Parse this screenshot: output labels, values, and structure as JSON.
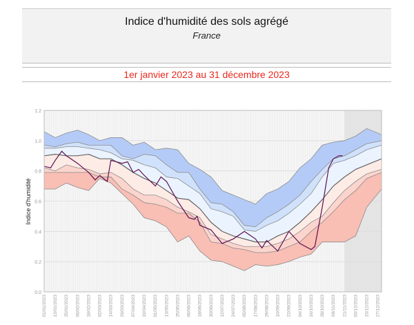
{
  "header": {
    "title": "Indice d'humidité des sols agrégé",
    "subtitle": "France"
  },
  "period": "1er janvier 2023 au 31 décembre 2023",
  "chart_data": {
    "type": "area",
    "ylabel": "Indice d'humidité",
    "ylim": [
      0,
      1.2
    ],
    "yticks": [
      "0.0",
      "0.2",
      "0.4",
      "0.6",
      "0.8",
      "1.0",
      "1.2"
    ],
    "xlim": [
      "2023-01-01",
      "2023-12-31"
    ],
    "xticks": [
      "01/01/2023",
      "13/01/2023",
      "25/01/2023",
      "06/02/2023",
      "18/02/2023",
      "02/03/2023",
      "14/03/2023",
      "26/03/2023",
      "07/04/2023",
      "19/04/2023",
      "01/05/2023",
      "13/05/2023",
      "25/05/2023",
      "06/06/2023",
      "18/06/2023",
      "30/06/2023",
      "12/07/2023",
      "24/07/2023",
      "05/08/2023",
      "17/08/2023",
      "29/08/2023",
      "10/09/2023",
      "22/09/2023",
      "04/10/2023",
      "16/10/2023",
      "28/10/2023",
      "09/11/2023",
      "21/11/2023",
      "03/12/2023",
      "15/12/2023",
      "27/12/2023"
    ],
    "grid": true,
    "shaded_period": [
      "2023-11-21",
      "2023-12-31"
    ],
    "band_x": [
      "2023-01-01",
      "2023-01-13",
      "2023-01-25",
      "2023-02-06",
      "2023-02-18",
      "2023-03-02",
      "2023-03-14",
      "2023-03-26",
      "2023-04-07",
      "2023-04-19",
      "2023-05-01",
      "2023-05-13",
      "2023-05-25",
      "2023-06-06",
      "2023-06-18",
      "2023-06-30",
      "2023-07-12",
      "2023-07-24",
      "2023-08-05",
      "2023-08-17",
      "2023-08-29",
      "2023-09-10",
      "2023-09-22",
      "2023-10-04",
      "2023-10-16",
      "2023-10-28",
      "2023-11-09",
      "2023-11-21",
      "2023-12-03",
      "2023-12-15",
      "2023-12-31"
    ],
    "bands": [
      {
        "values": [
          1.06,
          1.02,
          1.05,
          1.07,
          1.04,
          1.0,
          1.02,
          1.02,
          0.97,
          0.99,
          0.94,
          0.95,
          0.94,
          0.85,
          0.81,
          0.76,
          0.67,
          0.64,
          0.61,
          0.58,
          0.65,
          0.68,
          0.73,
          0.82,
          0.88,
          0.97,
          0.99,
          1.0,
          1.03,
          1.08,
          1.04
        ],
        "fill": "#b5cbf7"
      },
      {
        "values": [
          0.97,
          0.96,
          0.98,
          0.99,
          0.97,
          0.97,
          0.97,
          0.9,
          0.88,
          0.91,
          0.9,
          0.84,
          0.79,
          0.79,
          0.68,
          0.59,
          0.58,
          0.53,
          0.44,
          0.43,
          0.49,
          0.53,
          0.58,
          0.64,
          0.73,
          0.81,
          0.88,
          0.9,
          0.94,
          0.98,
          1.0
        ],
        "fill": "#d0e1fb"
      },
      {
        "values": [
          0.95,
          0.95,
          0.96,
          0.96,
          0.95,
          0.94,
          0.92,
          0.88,
          0.87,
          0.84,
          0.82,
          0.76,
          0.75,
          0.7,
          0.65,
          0.55,
          0.53,
          0.5,
          0.41,
          0.4,
          0.44,
          0.47,
          0.52,
          0.58,
          0.65,
          0.76,
          0.85,
          0.87,
          0.9,
          0.94,
          0.97
        ],
        "fill": "#ebf3fe"
      },
      {
        "values": [
          0.9,
          0.91,
          0.9,
          0.9,
          0.91,
          0.88,
          0.88,
          0.84,
          0.79,
          0.75,
          0.72,
          0.67,
          0.62,
          0.61,
          0.55,
          0.46,
          0.4,
          0.37,
          0.35,
          0.33,
          0.33,
          0.37,
          0.4,
          0.46,
          0.53,
          0.61,
          0.7,
          0.76,
          0.81,
          0.84,
          0.88
        ],
        "fill": "#fdebe6"
      },
      {
        "values": [
          0.82,
          0.8,
          0.84,
          0.82,
          0.81,
          0.78,
          0.79,
          0.75,
          0.68,
          0.64,
          0.64,
          0.61,
          0.56,
          0.53,
          0.49,
          0.38,
          0.35,
          0.32,
          0.3,
          0.3,
          0.3,
          0.32,
          0.35,
          0.4,
          0.46,
          0.5,
          0.59,
          0.67,
          0.73,
          0.78,
          0.81
        ],
        "fill": "#fbd5cd"
      },
      {
        "values": [
          0.79,
          0.79,
          0.79,
          0.79,
          0.79,
          0.76,
          0.76,
          0.68,
          0.64,
          0.59,
          0.58,
          0.56,
          0.52,
          0.52,
          0.46,
          0.33,
          0.32,
          0.29,
          0.28,
          0.26,
          0.26,
          0.27,
          0.3,
          0.33,
          0.4,
          0.46,
          0.53,
          0.61,
          0.67,
          0.75,
          0.79
        ],
        "fill": "#f9beb4"
      },
      {
        "values": [
          0.68,
          0.68,
          0.72,
          0.69,
          0.67,
          0.75,
          0.72,
          0.65,
          0.58,
          0.49,
          0.47,
          0.43,
          0.33,
          0.37,
          0.27,
          0.21,
          0.2,
          0.17,
          0.14,
          0.18,
          0.17,
          0.18,
          0.2,
          0.23,
          0.25,
          0.33,
          0.33,
          0.33,
          0.37,
          0.56,
          0.68
        ]
      }
    ],
    "series": [
      {
        "color": "#5c0f52",
        "x": [
          "2023-01-01",
          "2023-01-08",
          "2023-01-13",
          "2023-01-20",
          "2023-01-25",
          "2023-02-06",
          "2023-02-18",
          "2023-02-25",
          "2023-03-02",
          "2023-03-10",
          "2023-03-14",
          "2023-03-26",
          "2023-04-01",
          "2023-04-07",
          "2023-04-13",
          "2023-04-19",
          "2023-05-01",
          "2023-05-07",
          "2023-05-13",
          "2023-05-25",
          "2023-06-06",
          "2023-06-12",
          "2023-06-15",
          "2023-06-18",
          "2023-06-30",
          "2023-07-12",
          "2023-07-24",
          "2023-08-05",
          "2023-08-17",
          "2023-08-24",
          "2023-08-29",
          "2023-09-10",
          "2023-09-22",
          "2023-10-04",
          "2023-10-16",
          "2023-10-20",
          "2023-10-28",
          "2023-11-04",
          "2023-11-09",
          "2023-11-15",
          "2023-11-19"
        ],
        "values": [
          0.83,
          0.82,
          0.87,
          0.93,
          0.9,
          0.85,
          0.79,
          0.74,
          0.77,
          0.73,
          0.87,
          0.85,
          0.86,
          0.79,
          0.81,
          0.77,
          0.7,
          0.76,
          0.73,
          0.6,
          0.49,
          0.48,
          0.5,
          0.44,
          0.41,
          0.32,
          0.35,
          0.4,
          0.35,
          0.29,
          0.34,
          0.27,
          0.4,
          0.32,
          0.28,
          0.3,
          0.56,
          0.82,
          0.88,
          0.9,
          0.9
        ]
      }
    ]
  }
}
